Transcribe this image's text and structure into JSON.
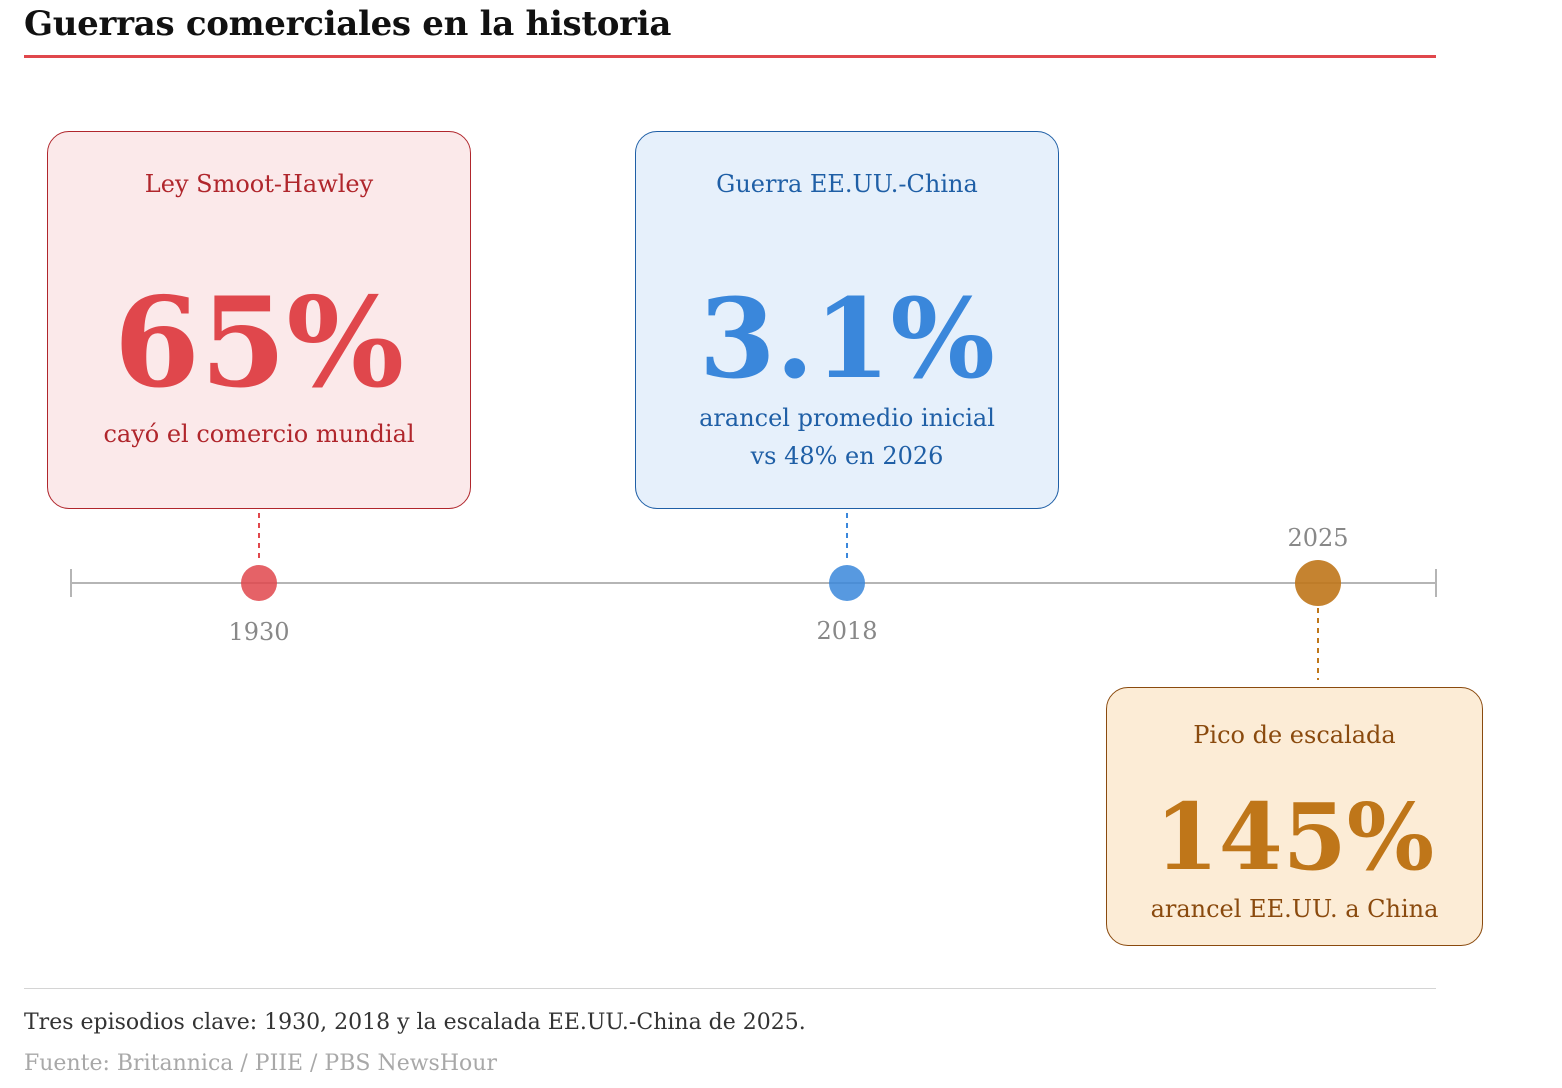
{
  "title": "Guerras comerciales en la historia",
  "colors": {
    "accent_red": "#e0474c",
    "accent_blue": "#3a87db",
    "accent_gold": "#bf7619",
    "axis": "#b5b5b5"
  },
  "events": [
    {
      "year": "1930",
      "label": "Ley Smoot-Hawley",
      "value": "65%",
      "description": [
        "cayó el comercio mundial"
      ]
    },
    {
      "year": "2018",
      "label": "Guerra EE.UU.-China",
      "value": "3.1%",
      "description": [
        "arancel promedio inicial",
        "vs 48% en 2026"
      ]
    },
    {
      "year": "2025",
      "label": "Pico de escalada",
      "value": "145%",
      "description": [
        "arancel EE.UU. a China"
      ]
    }
  ],
  "caption": "Tres episodios clave: 1930, 2018 y la escalada EE.UU.-China de 2025.",
  "source": "Fuente: Britannica / PIIE / PBS NewsHour"
}
